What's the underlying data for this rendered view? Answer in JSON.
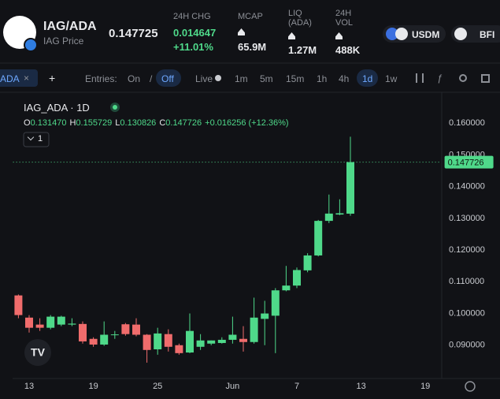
{
  "header": {
    "pair": "IAG/ADA",
    "subtitle": "IAG Price",
    "price": "0.147725",
    "stats": [
      {
        "label": "24H CHG",
        "value": "0.014647",
        "change": "+11.01%"
      },
      {
        "label": "MCAP",
        "value": "65.9M"
      },
      {
        "label": "LIQ (ADA)",
        "value": "1.27M"
      },
      {
        "label": "24H VOL",
        "value": "488K"
      }
    ],
    "tokens": [
      "USDM",
      "BFI"
    ]
  },
  "toolbar": {
    "tab": "ADA",
    "entries_label": "Entries:",
    "entries_options": [
      "On",
      "Off"
    ],
    "live": "Live",
    "intervals": [
      "1m",
      "5m",
      "15m",
      "1h",
      "4h",
      "1d",
      "1w"
    ]
  },
  "chart_data": {
    "type": "candlestick",
    "title": "IAG_ADA · 1D",
    "legend": [
      {
        "key": "O",
        "value": "0.131470"
      },
      {
        "key": "H",
        "value": "0.155729"
      },
      {
        "key": "L",
        "value": "0.130826"
      },
      {
        "key": "C",
        "value": "0.147726"
      }
    ],
    "legend_change": "+0.016256 (+12.36%)",
    "interval_selector": "1",
    "categories": [
      null,
      "13",
      null,
      null,
      null,
      null,
      null,
      "19",
      null,
      null,
      null,
      null,
      null,
      "25",
      null,
      null,
      null,
      null,
      null,
      null,
      "Jun",
      null,
      null,
      null,
      null,
      null,
      "7",
      null,
      null,
      null,
      null,
      null,
      "13",
      null,
      null,
      null,
      null,
      null,
      "19",
      null
    ],
    "open": [
      0.1057,
      0.0987,
      0.0965,
      0.0955,
      0.0965,
      0.0965,
      0.0967,
      0.092,
      0.0902,
      0.0932,
      0.0966,
      0.0965,
      0.0933,
      0.0887,
      0.0935,
      0.09,
      0.0877,
      0.0895,
      0.0905,
      0.0907,
      0.0917,
      0.092,
      0.091,
      0.0983,
      0.0993,
      0.1073,
      0.1088,
      0.1136,
      0.1183,
      0.1292,
      0.1312,
      0.13147,
      null,
      null,
      null,
      null,
      null,
      null,
      null,
      null
    ],
    "high": [
      0.106,
      0.0995,
      0.0985,
      0.0995,
      0.0993,
      0.0985,
      0.0975,
      0.0925,
      0.0975,
      0.0945,
      0.097,
      0.0985,
      0.0935,
      0.0955,
      0.095,
      0.0905,
      0.1,
      0.0935,
      0.0915,
      0.0925,
      0.099,
      0.096,
      0.105,
      0.104,
      0.108,
      0.115,
      0.1145,
      0.119,
      0.1295,
      0.1375,
      0.136,
      0.155729,
      null,
      null,
      null,
      null,
      null,
      null,
      null,
      null
    ],
    "low": [
      0.0985,
      0.094,
      0.0945,
      0.095,
      0.096,
      0.096,
      0.0905,
      0.0895,
      0.0898,
      0.092,
      0.093,
      0.0928,
      0.0845,
      0.087,
      0.088,
      0.087,
      0.0875,
      0.0885,
      0.09,
      0.0905,
      0.0905,
      0.088,
      0.0905,
      0.09,
      0.0875,
      0.107,
      0.108,
      0.113,
      0.118,
      0.1285,
      0.131,
      0.130826,
      null,
      null,
      null,
      null,
      null,
      null,
      null,
      null
    ],
    "close": [
      0.0995,
      0.0955,
      0.0955,
      0.099,
      0.099,
      0.0968,
      0.0912,
      0.0902,
      0.0933,
      0.0934,
      0.0935,
      0.0933,
      0.0885,
      0.0937,
      0.0895,
      0.0875,
      0.0945,
      0.0915,
      0.0915,
      0.0917,
      0.0933,
      0.091,
      0.0987,
      0.1,
      0.1073,
      0.1088,
      0.1137,
      0.1183,
      0.1292,
      0.1315,
      0.1316,
      0.147726,
      null,
      null,
      null,
      null,
      null,
      null,
      null,
      null
    ],
    "colors": {
      "up": "#4fd98a",
      "down": "#f06c6c"
    },
    "ylim": [
      0.08,
      0.17
    ],
    "yticks": [
      {
        "value": 0.09,
        "label": "0.090000"
      },
      {
        "value": 0.1,
        "label": "0.100000"
      },
      {
        "value": 0.11,
        "label": "0.110000"
      },
      {
        "value": 0.12,
        "label": "0.120000"
      },
      {
        "value": 0.13,
        "label": "0.130000"
      },
      {
        "value": 0.14,
        "label": "0.140000"
      },
      {
        "value": 0.15,
        "label": "0.150000"
      },
      {
        "value": 0.16,
        "label": "0.160000"
      }
    ],
    "last_price": {
      "value": 0.147726,
      "label": "0.147726"
    }
  }
}
